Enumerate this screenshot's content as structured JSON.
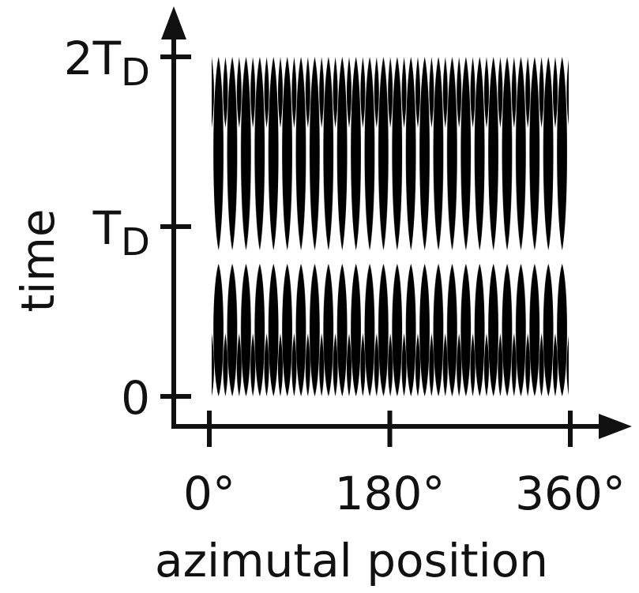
{
  "chart_data": {
    "type": "heatmap",
    "x_label": "azimutal position",
    "y_label": "time",
    "xlim": [
      0,
      360
    ],
    "xticks": [
      {
        "value": 0,
        "label": "0°"
      },
      {
        "value": 180,
        "label": "180°"
      },
      {
        "value": 360,
        "label": "360°"
      }
    ],
    "ylim": [
      0,
      2
    ],
    "yticks": [
      0,
      {
        "value": 1,
        "label": "T",
        "subscript": "D"
      },
      {
        "value": 2,
        "label": "2T",
        "subscript": "D"
      }
    ]
  }
}
